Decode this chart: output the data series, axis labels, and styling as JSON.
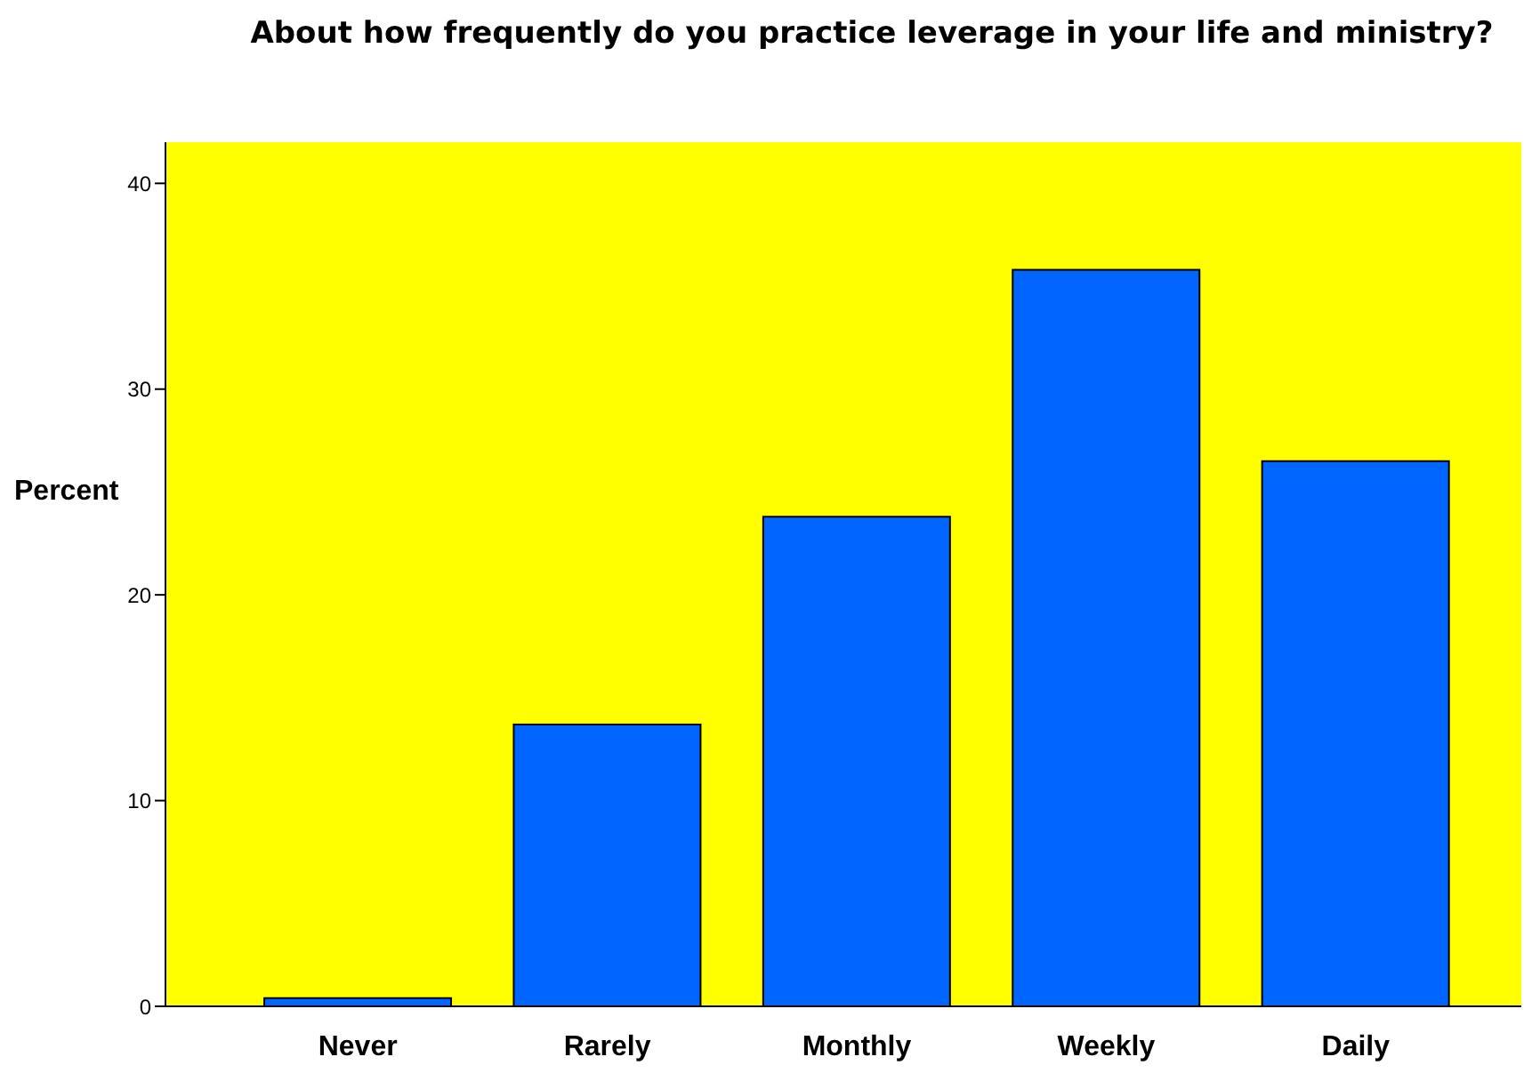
{
  "chart_data": {
    "type": "bar",
    "title": "About how frequently do you practice leverage in your life and ministry?",
    "ylabel": "Percent",
    "categories": [
      "Never",
      "Rarely",
      "Monthly",
      "Weekly",
      "Daily"
    ],
    "values": [
      0.4,
      13.7,
      23.8,
      35.8,
      26.5
    ],
    "color": "#0066ff",
    "ylim": [
      0,
      42
    ],
    "yticks": [
      0,
      10,
      20,
      30,
      40
    ],
    "grid": false
  }
}
